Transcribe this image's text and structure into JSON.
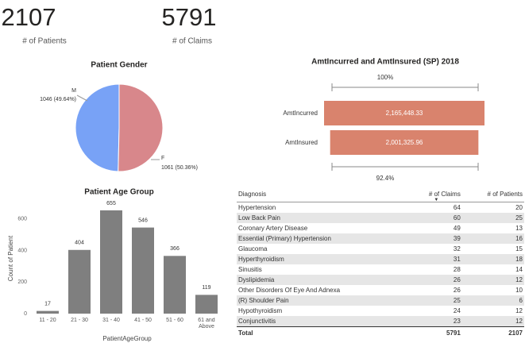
{
  "kpis": [
    {
      "value": 2107,
      "label": "# of Patients"
    },
    {
      "value": 5791,
      "label": "# of Claims"
    }
  ],
  "chart_data": [
    {
      "type": "pie",
      "title": "Patient Gender",
      "categories": [
        "M",
        "F"
      ],
      "values": [
        1046,
        1061
      ],
      "value_labels": [
        "1046 (49.64%)",
        "1061 (50.36%)"
      ],
      "colors": [
        "#78a2f6",
        "#d8878b"
      ]
    },
    {
      "type": "funnel",
      "title": "AmtIncurred and AmtInsured (SP) 2018",
      "categories": [
        "AmtIncurred",
        "AmtInsured"
      ],
      "values": [
        2165448.33,
        2001325.96
      ],
      "value_labels": [
        "2,165,448.33",
        "2,001,325.96"
      ],
      "color": "#d9836d",
      "annotations": [
        "100%",
        "92.4%"
      ]
    },
    {
      "type": "bar",
      "title": "Patient Age Group",
      "categories": [
        "11 - 20",
        "21 - 30",
        "31 - 40",
        "41 - 50",
        "51 - 60",
        "61 and Above"
      ],
      "values": [
        17,
        404,
        655,
        546,
        366,
        119
      ],
      "color": "#7f7f7f",
      "ylim": [
        0,
        700
      ],
      "yticks": [
        0,
        200,
        400,
        600
      ],
      "grid": false,
      "xlabel": "PatientAgeGroup",
      "ylabel": "Count of Patient"
    }
  ],
  "table": {
    "columns": [
      "Diagnosis",
      "# of Claims",
      "# of Patients"
    ],
    "rows": [
      [
        "Hypertension",
        64,
        20
      ],
      [
        "Low Back Pain",
        60,
        25
      ],
      [
        "Coronary Artery Disease",
        49,
        13
      ],
      [
        "Essential (Primary) Hypertension",
        39,
        16
      ],
      [
        "Glaucoma",
        32,
        15
      ],
      [
        "Hyperthyroidism",
        31,
        18
      ],
      [
        "Sinusitis",
        28,
        14
      ],
      [
        "Dyslipidemia",
        26,
        12
      ],
      [
        "Other Disorders Of Eye And Adnexa",
        26,
        10
      ],
      [
        "(R) Shoulder Pain",
        25,
        6
      ],
      [
        "Hypothyroidism",
        24,
        12
      ],
      [
        "Conjunctivitis",
        23,
        12
      ]
    ],
    "total": [
      "Total",
      5791,
      2107
    ]
  }
}
